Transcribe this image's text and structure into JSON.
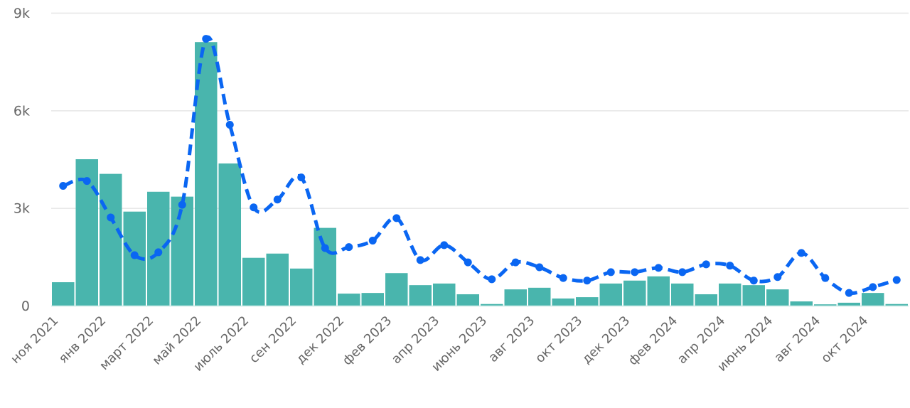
{
  "chart_data": {
    "type": "bar",
    "title": "",
    "xlabel": "",
    "ylabel": "",
    "ylim": [
      0,
      9000
    ],
    "grid": true,
    "legend": "none",
    "y_ticks": [
      {
        "value": 0,
        "label": "0"
      },
      {
        "value": 3000,
        "label": "3k"
      },
      {
        "value": 6000,
        "label": "6k"
      },
      {
        "value": 9000,
        "label": "9k"
      }
    ],
    "x_tick_labels": [
      "ноя 2021",
      "янв 2022",
      "март 2022",
      "май 2022",
      "июль 2022",
      "сен 2022",
      "дек 2022",
      "фев 2023",
      "апр 2023",
      "июнь 2023",
      "авг 2023",
      "окт 2023",
      "дек 2023",
      "фев 2024",
      "апр 2024",
      "июнь 2024",
      "авг 2024",
      "окт 2024"
    ],
    "series": [
      {
        "type": "bar",
        "color": "#49b5ad",
        "values": [
          720,
          4500,
          4050,
          2890,
          3500,
          3350,
          8100,
          4370,
          1470,
          1600,
          1140,
          2390,
          370,
          390,
          1000,
          630,
          680,
          350,
          50,
          500,
          550,
          220,
          260,
          680,
          770,
          900,
          680,
          350,
          680,
          630,
          500,
          130,
          40,
          90,
          390,
          50
        ]
      },
      {
        "type": "line",
        "style": "dashed-smooth",
        "color": "#0a66f2",
        "values": [
          3680,
          3830,
          2710,
          1550,
          1640,
          3100,
          8200,
          5560,
          3020,
          3260,
          3940,
          1770,
          1800,
          2000,
          2690,
          1400,
          1860,
          1330,
          810,
          1330,
          1180,
          850,
          770,
          1030,
          1030,
          1160,
          1030,
          1270,
          1230,
          770,
          880,
          1620,
          850,
          390,
          570,
          790
        ]
      }
    ]
  }
}
